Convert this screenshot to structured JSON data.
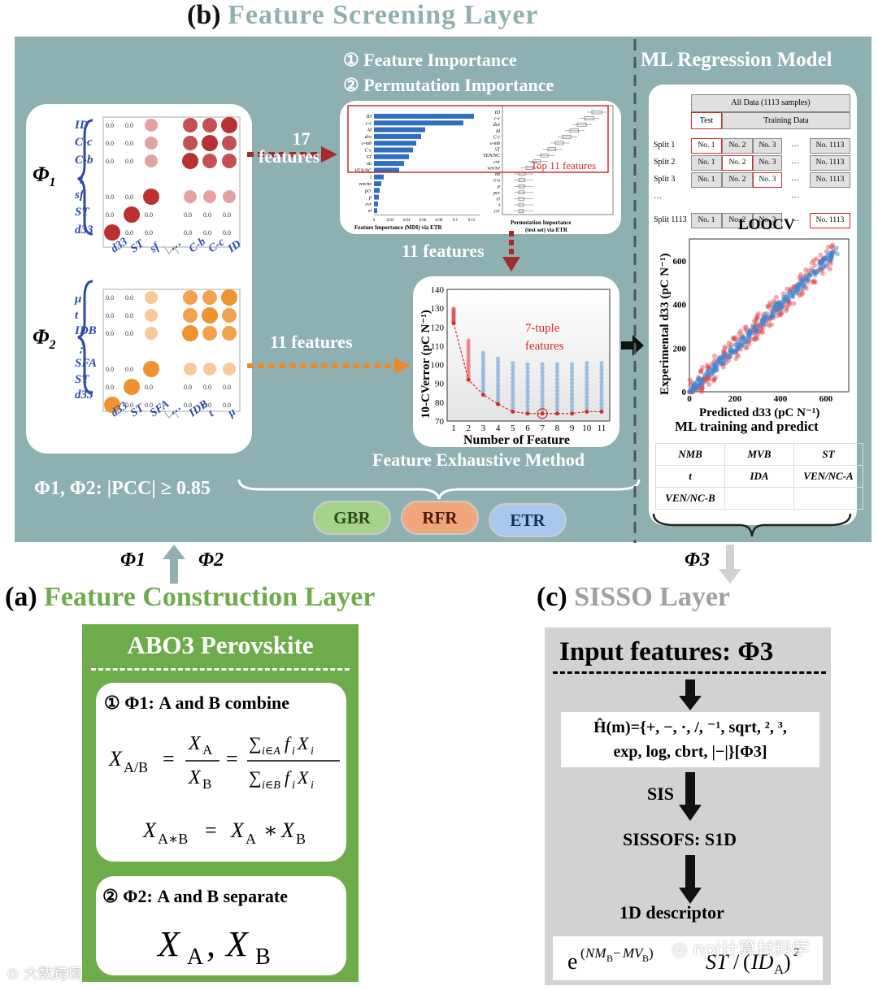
{
  "title_b": {
    "label": "(b)",
    "text": "Feature Screening Layer"
  },
  "phi1_label": "Φ",
  "phi1_sub": "1",
  "phi2_sub": "2",
  "phi3_sub": "3",
  "matrix1": {
    "rows": [
      "ID",
      "C-c",
      "C-b",
      "⋮",
      "sf",
      "ST",
      "d33"
    ],
    "cols": [
      "d33",
      "ST",
      "sf",
      "⋯",
      "C-b",
      "C-c",
      "ID"
    ]
  },
  "matrix2": {
    "rows": [
      "μ",
      "t",
      "IDB",
      "⋮",
      "SFA",
      "ST",
      "d33"
    ],
    "cols": [
      "d33",
      "ST",
      "SFA",
      "⋯",
      "IDB",
      "t",
      "μ"
    ]
  },
  "arrow1": {
    "count": "17",
    "unit": "features"
  },
  "arrow2": "11 features",
  "arrow3": "11 features",
  "importance": {
    "line1": "① Feature Importance",
    "line2": "② Permutation Importance",
    "mdi_features": [
      "ID",
      "c-c",
      "Id",
      "dce",
      "e-mb",
      "C-c",
      "ST",
      "mt",
      "VEN/NC",
      "t",
      "ven/ne",
      "pcr",
      "p",
      "cvr",
      "ei"
    ],
    "mdi_values": [
      0.123,
      0.11,
      0.063,
      0.058,
      0.052,
      0.048,
      0.043,
      0.037,
      0.031,
      0.012,
      0.009,
      0.007,
      0.006,
      0.005,
      0.004
    ],
    "mdi_ticks": [
      "0",
      "0.02",
      "0.04",
      "0.06",
      "0.08",
      "0.1",
      "0.12"
    ],
    "mdi_caption": "Feature Importance (MDI) via ETR",
    "perm_features": [
      "ID",
      "c-c",
      "dce",
      "Id",
      "C-c",
      "e-mb",
      "ST",
      "VEN/NC",
      "cvr",
      "ven/ne",
      "mt",
      "e-a",
      "p",
      "pcr",
      "ei",
      "t",
      "cvr"
    ],
    "perm_caption1": "Permutation Importance",
    "perm_caption2": "(test set) via ETR",
    "top_label": "Top 11 features"
  },
  "exhaustive": {
    "ylabel": "10-CVerror (pC N⁻¹)",
    "xlabel": "Number of Feature",
    "annot1": "7-tuple",
    "annot2": "features",
    "caption": "Feature Exhaustive Method"
  },
  "chart_data": {
    "type": "scatter",
    "x": [
      1,
      2,
      3,
      4,
      5,
      6,
      7,
      8,
      9,
      10,
      11
    ],
    "best": [
      122,
      92,
      84,
      79,
      75,
      74,
      74,
      74,
      74,
      75,
      75
    ],
    "xlabel": "Number of Feature",
    "ylabel": "10-CVerror (pC N⁻¹)",
    "ylim": [
      70,
      140
    ],
    "yticks": [
      70,
      80,
      90,
      100,
      110,
      120,
      130,
      140
    ]
  },
  "pcc_label": "Φ1, Φ2: |PCC| ≥ 0.85",
  "models": [
    "GBR",
    "RFR",
    "ETR"
  ],
  "ml": {
    "title": "ML Regression Model",
    "all_data": "All Data (1113 samples)",
    "test": "Test",
    "training": "Training Data",
    "splits": [
      {
        "name": "Split 1",
        "cells": [
          "No. 1",
          "No. 2",
          "No. 3",
          "…",
          "No. 1113"
        ]
      },
      {
        "name": "Split 2",
        "cells": [
          "No. 1",
          "No. 2",
          "No. 3",
          "…",
          "No. 1113"
        ]
      },
      {
        "name": "Split 3",
        "cells": [
          "No. 1",
          "No. 2",
          "No. 3",
          "…",
          "No. 1113"
        ]
      },
      {
        "name": "…",
        "cells": [
          "",
          "",
          "",
          "…",
          ""
        ]
      },
      {
        "name": "Split 1113",
        "cells": [
          "No. 1",
          "No. 2",
          "No. 3",
          "…",
          "No. 1113"
        ]
      }
    ],
    "loocv": "LOOCV",
    "ylabel": "Experimental d33 (pC N⁻¹)",
    "xlabel": "Predicted d33 (pC N⁻¹)",
    "ticks": [
      "0",
      "200",
      "400",
      "600"
    ],
    "caption": "ML training and predict",
    "features": [
      [
        "NMB",
        "MVB",
        "ST"
      ],
      [
        "t",
        "IDA",
        "VEN/NC-A"
      ],
      [
        "VEN/NC-B",
        "",
        ""
      ]
    ]
  },
  "a": {
    "label": "(a)",
    "title": "Feature Construction Layer",
    "phi1": "Φ1",
    "phi2": "Φ2"
  },
  "abo3": "ABO3 Perovskite",
  "combine": "① Φ1: A and B combine",
  "separate": "② Φ2: A and B separate",
  "c": {
    "label": "(c)",
    "title": "SISSO Layer",
    "phi3": "Φ3"
  },
  "sisso": {
    "input": "Input features: Φ3",
    "ops1": "Ĥ(m)={+, −, ·, /, ⁻¹, sqrt, ², ³,",
    "ops2": "exp, log, cbrt, |−|}[Φ3]",
    "sis": "SIS",
    "sissofs": "SISSOFS: S1D",
    "descriptor": "1D descriptor"
  },
  "watermark_left": "大数跨境",
  "watermark_right": "npj计算材料学"
}
